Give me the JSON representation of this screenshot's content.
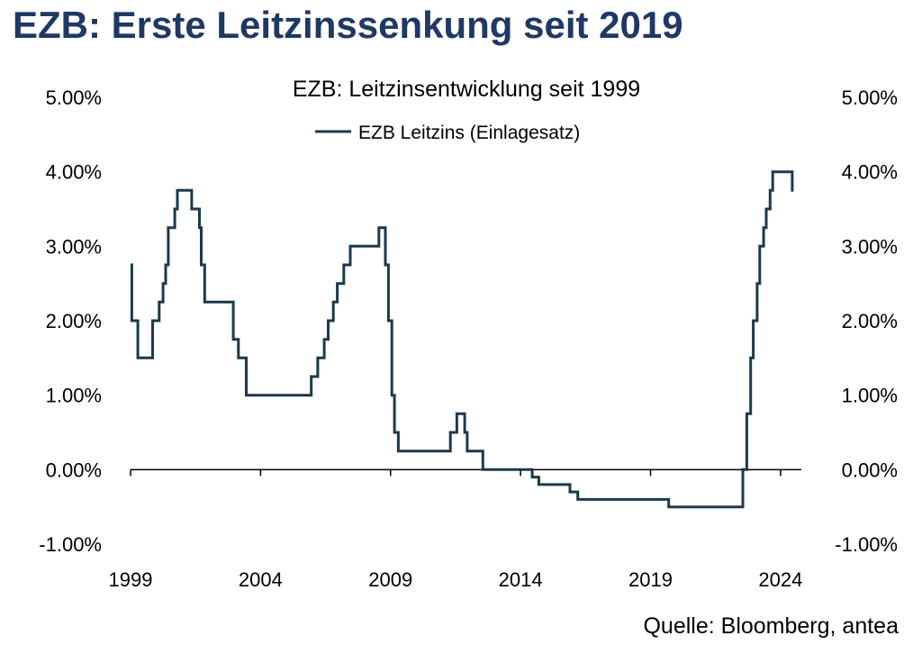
{
  "headline": "EZB: Erste Leitzinssenkung seit 2019",
  "source": "Quelle: Bloomberg, antea",
  "colors": {
    "headline": "#1f3864",
    "series": "#1b3a4b",
    "axis": "#000000"
  },
  "chart_data": {
    "type": "line",
    "title": "EZB: Leitzinsentwicklung seit 1999",
    "xlabel": "",
    "ylabel": "",
    "xlim": [
      1999.0,
      2024.8
    ],
    "ylim": [
      -1.0,
      5.0
    ],
    "x_ticks": [
      1999,
      2004,
      2009,
      2014,
      2019,
      2024
    ],
    "x_tick_labels": [
      "1999",
      "2004",
      "2009",
      "2014",
      "2019",
      "2024"
    ],
    "y_ticks": [
      -1,
      0,
      1,
      2,
      3,
      4,
      5
    ],
    "y_tick_labels": [
      "-1.00%",
      "0.00%",
      "1.00%",
      "2.00%",
      "3.00%",
      "4.00%",
      "5.00%"
    ],
    "secondary_y_axis": true,
    "grid": false,
    "legend": "top-center",
    "series": [
      {
        "name": "EZB Leitzins (Einlagesatz)",
        "step": true,
        "points": [
          [
            1999.0,
            2.75
          ],
          [
            1999.05,
            2.0
          ],
          [
            1999.28,
            1.5
          ],
          [
            1999.85,
            2.0
          ],
          [
            2000.1,
            2.25
          ],
          [
            2000.25,
            2.5
          ],
          [
            2000.35,
            2.75
          ],
          [
            2000.45,
            3.25
          ],
          [
            2000.7,
            3.5
          ],
          [
            2000.8,
            3.75
          ],
          [
            2001.35,
            3.5
          ],
          [
            2001.65,
            3.25
          ],
          [
            2001.72,
            2.75
          ],
          [
            2001.85,
            2.25
          ],
          [
            2002.95,
            1.75
          ],
          [
            2003.15,
            1.5
          ],
          [
            2003.45,
            1.0
          ],
          [
            2005.95,
            1.25
          ],
          [
            2006.2,
            1.5
          ],
          [
            2006.45,
            1.75
          ],
          [
            2006.6,
            2.0
          ],
          [
            2006.8,
            2.25
          ],
          [
            2006.95,
            2.5
          ],
          [
            2007.2,
            2.75
          ],
          [
            2007.45,
            3.0
          ],
          [
            2008.55,
            3.25
          ],
          [
            2008.8,
            2.75
          ],
          [
            2008.92,
            2.0
          ],
          [
            2009.05,
            1.0
          ],
          [
            2009.15,
            0.5
          ],
          [
            2009.3,
            0.25
          ],
          [
            2011.3,
            0.5
          ],
          [
            2011.55,
            0.75
          ],
          [
            2011.85,
            0.5
          ],
          [
            2011.95,
            0.25
          ],
          [
            2012.55,
            0.0
          ],
          [
            2014.45,
            -0.1
          ],
          [
            2014.7,
            -0.2
          ],
          [
            2015.9,
            -0.3
          ],
          [
            2016.2,
            -0.4
          ],
          [
            2019.7,
            -0.5
          ],
          [
            2022.55,
            0.0
          ],
          [
            2022.7,
            0.75
          ],
          [
            2022.85,
            1.5
          ],
          [
            2022.95,
            2.0
          ],
          [
            2023.1,
            2.5
          ],
          [
            2023.2,
            3.0
          ],
          [
            2023.35,
            3.25
          ],
          [
            2023.45,
            3.5
          ],
          [
            2023.6,
            3.75
          ],
          [
            2023.7,
            4.0
          ],
          [
            2024.45,
            3.75
          ],
          [
            2024.5,
            3.75
          ]
        ]
      }
    ]
  }
}
